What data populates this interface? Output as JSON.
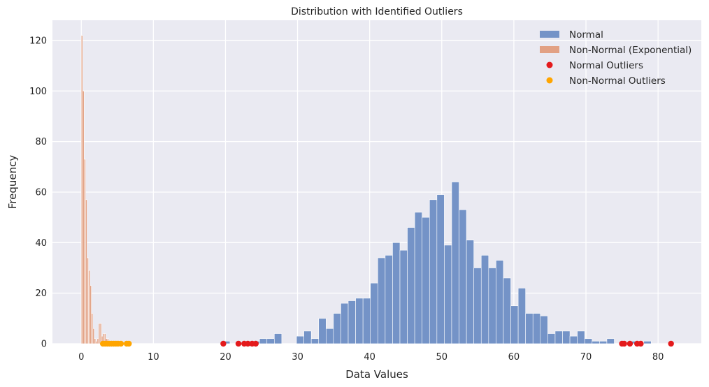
{
  "chart_data": {
    "type": "bar",
    "title": "Distribution with Identified Outliers",
    "xlabel": "Data Values",
    "ylabel": "Frequency",
    "xlim": [
      -4,
      86
    ],
    "ylim": [
      0,
      128
    ],
    "xticks": [
      0,
      10,
      20,
      30,
      40,
      50,
      60,
      70,
      80
    ],
    "yticks": [
      0,
      20,
      40,
      60,
      80,
      100,
      120
    ],
    "grid": true,
    "legend_position": "top-right",
    "colors": {
      "background": "#EAEAF2",
      "grid": "#FFFFFF",
      "normal": "#7493C7",
      "non_normal": "#E2A184",
      "normal_outliers": "#E41A1C",
      "non_normal_outliers": "#FFA500"
    },
    "legend": [
      {
        "label": "Normal",
        "marker": "patch",
        "color": "#7493C7"
      },
      {
        "label": "Non-Normal (Exponential)",
        "marker": "patch",
        "color": "#E2A184"
      },
      {
        "label": "Normal Outliers",
        "marker": "dot",
        "color": "#E41A1C"
      },
      {
        "label": "Non-Normal Outliers",
        "marker": "dot",
        "color": "#FFA500"
      }
    ],
    "series": [
      {
        "name": "Normal",
        "kind": "histogram",
        "bin_start": 19.6,
        "bin_width": 1.025,
        "counts": [
          1,
          0,
          0,
          1,
          1,
          2,
          2,
          4,
          0,
          0,
          3,
          5,
          2,
          10,
          6,
          12,
          16,
          17,
          18,
          18,
          24,
          34,
          35,
          40,
          37,
          46,
          52,
          50,
          57,
          59,
          39,
          64,
          53,
          41,
          30,
          35,
          30,
          33,
          26,
          15,
          22,
          12,
          12,
          11,
          4,
          5,
          5,
          3,
          5,
          2,
          1,
          1,
          2,
          0,
          0,
          1,
          0,
          1
        ]
      },
      {
        "name": "Non-Normal (Exponential)",
        "kind": "histogram",
        "bin_start": 0,
        "bin_width": 0.2,
        "counts": [
          122,
          100,
          73,
          57,
          34,
          29,
          23,
          12,
          6,
          2,
          1,
          2,
          8,
          8,
          3,
          4,
          4,
          2,
          2,
          1,
          1,
          1,
          1,
          1,
          0,
          0,
          0,
          0,
          0,
          0,
          0,
          1,
          1
        ]
      },
      {
        "name": "Normal Outliers",
        "kind": "scatter",
        "x": [
          19.7,
          21.8,
          22.6,
          23.1,
          23.7,
          24.2,
          75.0,
          75.3,
          76.1,
          77.1,
          77.6,
          81.8
        ],
        "y": [
          0,
          0,
          0,
          0,
          0,
          0,
          0,
          0,
          0,
          0,
          0,
          0
        ]
      },
      {
        "name": "Non-Normal Outliers",
        "kind": "scatter",
        "x": [
          3.0,
          3.3,
          3.6,
          3.9,
          4.2,
          4.5,
          4.8,
          5.1,
          5.5,
          6.3,
          6.6
        ],
        "y": [
          0,
          0,
          0,
          0,
          0,
          0,
          0,
          0,
          0,
          0,
          0
        ]
      }
    ]
  }
}
